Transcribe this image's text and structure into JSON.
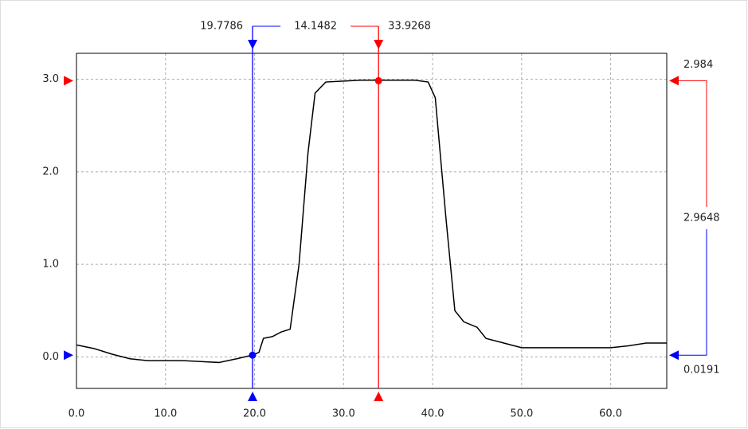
{
  "chart_data": {
    "type": "line",
    "x": [
      0,
      2,
      4,
      6,
      8,
      10,
      12,
      14,
      16,
      18,
      19.78,
      20.5,
      21,
      22,
      23,
      24,
      25,
      26,
      26.8,
      28,
      30,
      32,
      34,
      36,
      38,
      39.5,
      40.3,
      41.5,
      42.5,
      43.5,
      45,
      46,
      48,
      50,
      55,
      60,
      62,
      64,
      66.3
    ],
    "series": [
      {
        "color": "#000000",
        "values": [
          0.13,
          0.09,
          0.03,
          -0.02,
          -0.04,
          -0.04,
          -0.04,
          -0.05,
          -0.06,
          -0.02,
          0.02,
          0.05,
          0.2,
          0.22,
          0.27,
          0.3,
          1.0,
          2.2,
          2.85,
          2.97,
          2.98,
          2.99,
          2.99,
          2.99,
          2.99,
          2.97,
          2.8,
          1.5,
          0.5,
          0.38,
          0.32,
          0.2,
          0.15,
          0.1,
          0.1,
          0.1,
          0.12,
          0.15,
          0.15
        ]
      }
    ],
    "xlim": [
      0,
      66.3
    ],
    "ylim": [
      -0.34,
      3.28
    ],
    "xticks": [
      {
        "value": 0,
        "label": "0.0"
      },
      {
        "value": 10,
        "label": "10.0"
      },
      {
        "value": 20,
        "label": "20.0"
      },
      {
        "value": 30,
        "label": "30.0"
      },
      {
        "value": 40,
        "label": "40.0"
      },
      {
        "value": 50,
        "label": "50.0"
      },
      {
        "value": 60,
        "label": "60.0"
      }
    ],
    "yticks": [
      {
        "value": 0,
        "label": "0.0"
      },
      {
        "value": 1,
        "label": "1.0"
      },
      {
        "value": 2,
        "label": "2.0"
      },
      {
        "value": 3,
        "label": "3.0"
      }
    ],
    "grid": true,
    "cursors": [
      {
        "x": 19.7786,
        "y": 0.0191,
        "color": "#0000ff"
      },
      {
        "x": 33.9268,
        "y": 2.984,
        "color": "#ff0000"
      }
    ],
    "delta_x": 14.1482,
    "delta_y": 2.9648
  }
}
